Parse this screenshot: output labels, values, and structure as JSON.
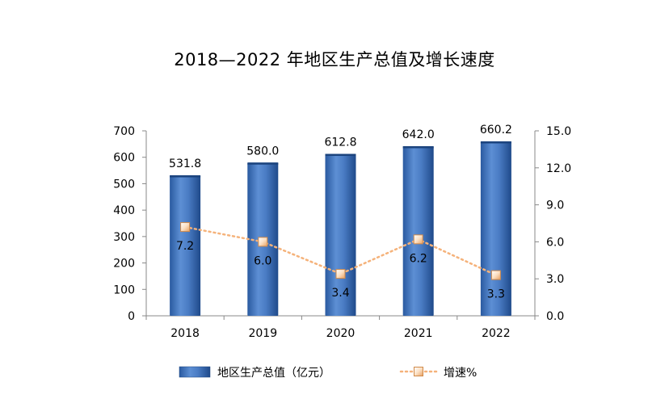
{
  "chart_data": {
    "type": "bar",
    "title": "2018—2022 年地区生产总值及增长速度",
    "categories": [
      "2018",
      "2019",
      "2020",
      "2021",
      "2022"
    ],
    "series": [
      {
        "name": "地区生产总值（亿元）",
        "type": "bar",
        "axis": "left",
        "values": [
          531.8,
          580.0,
          612.8,
          642.0,
          660.2
        ],
        "labels": [
          "531.8",
          "580.0",
          "612.8",
          "642.0",
          "660.2"
        ],
        "color": "#3a6fb5"
      },
      {
        "name": "增速%",
        "type": "line",
        "axis": "right",
        "values": [
          7.2,
          6.0,
          3.4,
          6.2,
          3.3
        ],
        "labels": [
          "7.2",
          "6.0",
          "3.4",
          "6.2",
          "3.3"
        ],
        "color": "#f5b27a"
      }
    ],
    "y_left": {
      "ylim": [
        0,
        700
      ],
      "ticks": [
        "0",
        "100",
        "200",
        "300",
        "400",
        "500",
        "600",
        "700"
      ]
    },
    "y_right": {
      "ylim": [
        0,
        15
      ],
      "ticks": [
        "0.0",
        "3.0",
        "6.0",
        "9.0",
        "12.0",
        "15.0"
      ]
    },
    "grid": false,
    "legend": "bottom"
  }
}
